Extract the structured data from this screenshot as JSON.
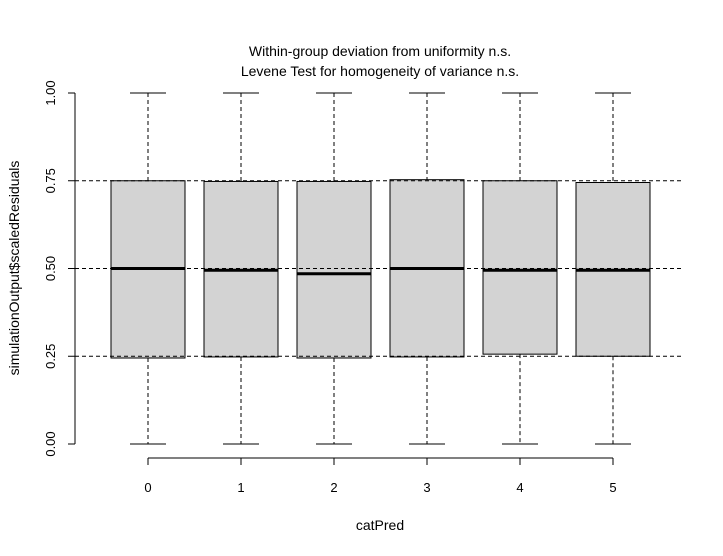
{
  "chart_data": {
    "type": "boxplot",
    "title_lines": [
      "Within-group deviation from uniformity n.s.",
      "Levene Test for homogeneity of variance n.s."
    ],
    "xlabel": "catPred",
    "ylabel": "simulationOutput$scaledResiduals",
    "categories": [
      "0",
      "1",
      "2",
      "3",
      "4",
      "5"
    ],
    "ylim": [
      0,
      1
    ],
    "yticks": [
      0.0,
      0.25,
      0.5,
      0.75,
      1.0
    ],
    "ytick_labels": [
      "0.00",
      "0.25",
      "0.50",
      "0.75",
      "1.00"
    ],
    "reference_lines": [
      0.25,
      0.5,
      0.75
    ],
    "box_color": "#d3d3d3",
    "boxes": [
      {
        "category": "0",
        "min": 0.0,
        "q1": 0.245,
        "median": 0.5,
        "q3": 0.75,
        "max": 1.0
      },
      {
        "category": "1",
        "min": 0.0,
        "q1": 0.248,
        "median": 0.495,
        "q3": 0.748,
        "max": 1.0
      },
      {
        "category": "2",
        "min": 0.0,
        "q1": 0.245,
        "median": 0.485,
        "q3": 0.748,
        "max": 1.0
      },
      {
        "category": "3",
        "min": 0.0,
        "q1": 0.248,
        "median": 0.5,
        "q3": 0.753,
        "max": 1.0
      },
      {
        "category": "4",
        "min": 0.0,
        "q1": 0.256,
        "median": 0.495,
        "q3": 0.75,
        "max": 1.0
      },
      {
        "category": "5",
        "min": 0.0,
        "q1": 0.25,
        "median": 0.495,
        "q3": 0.745,
        "max": 1.0
      }
    ]
  }
}
